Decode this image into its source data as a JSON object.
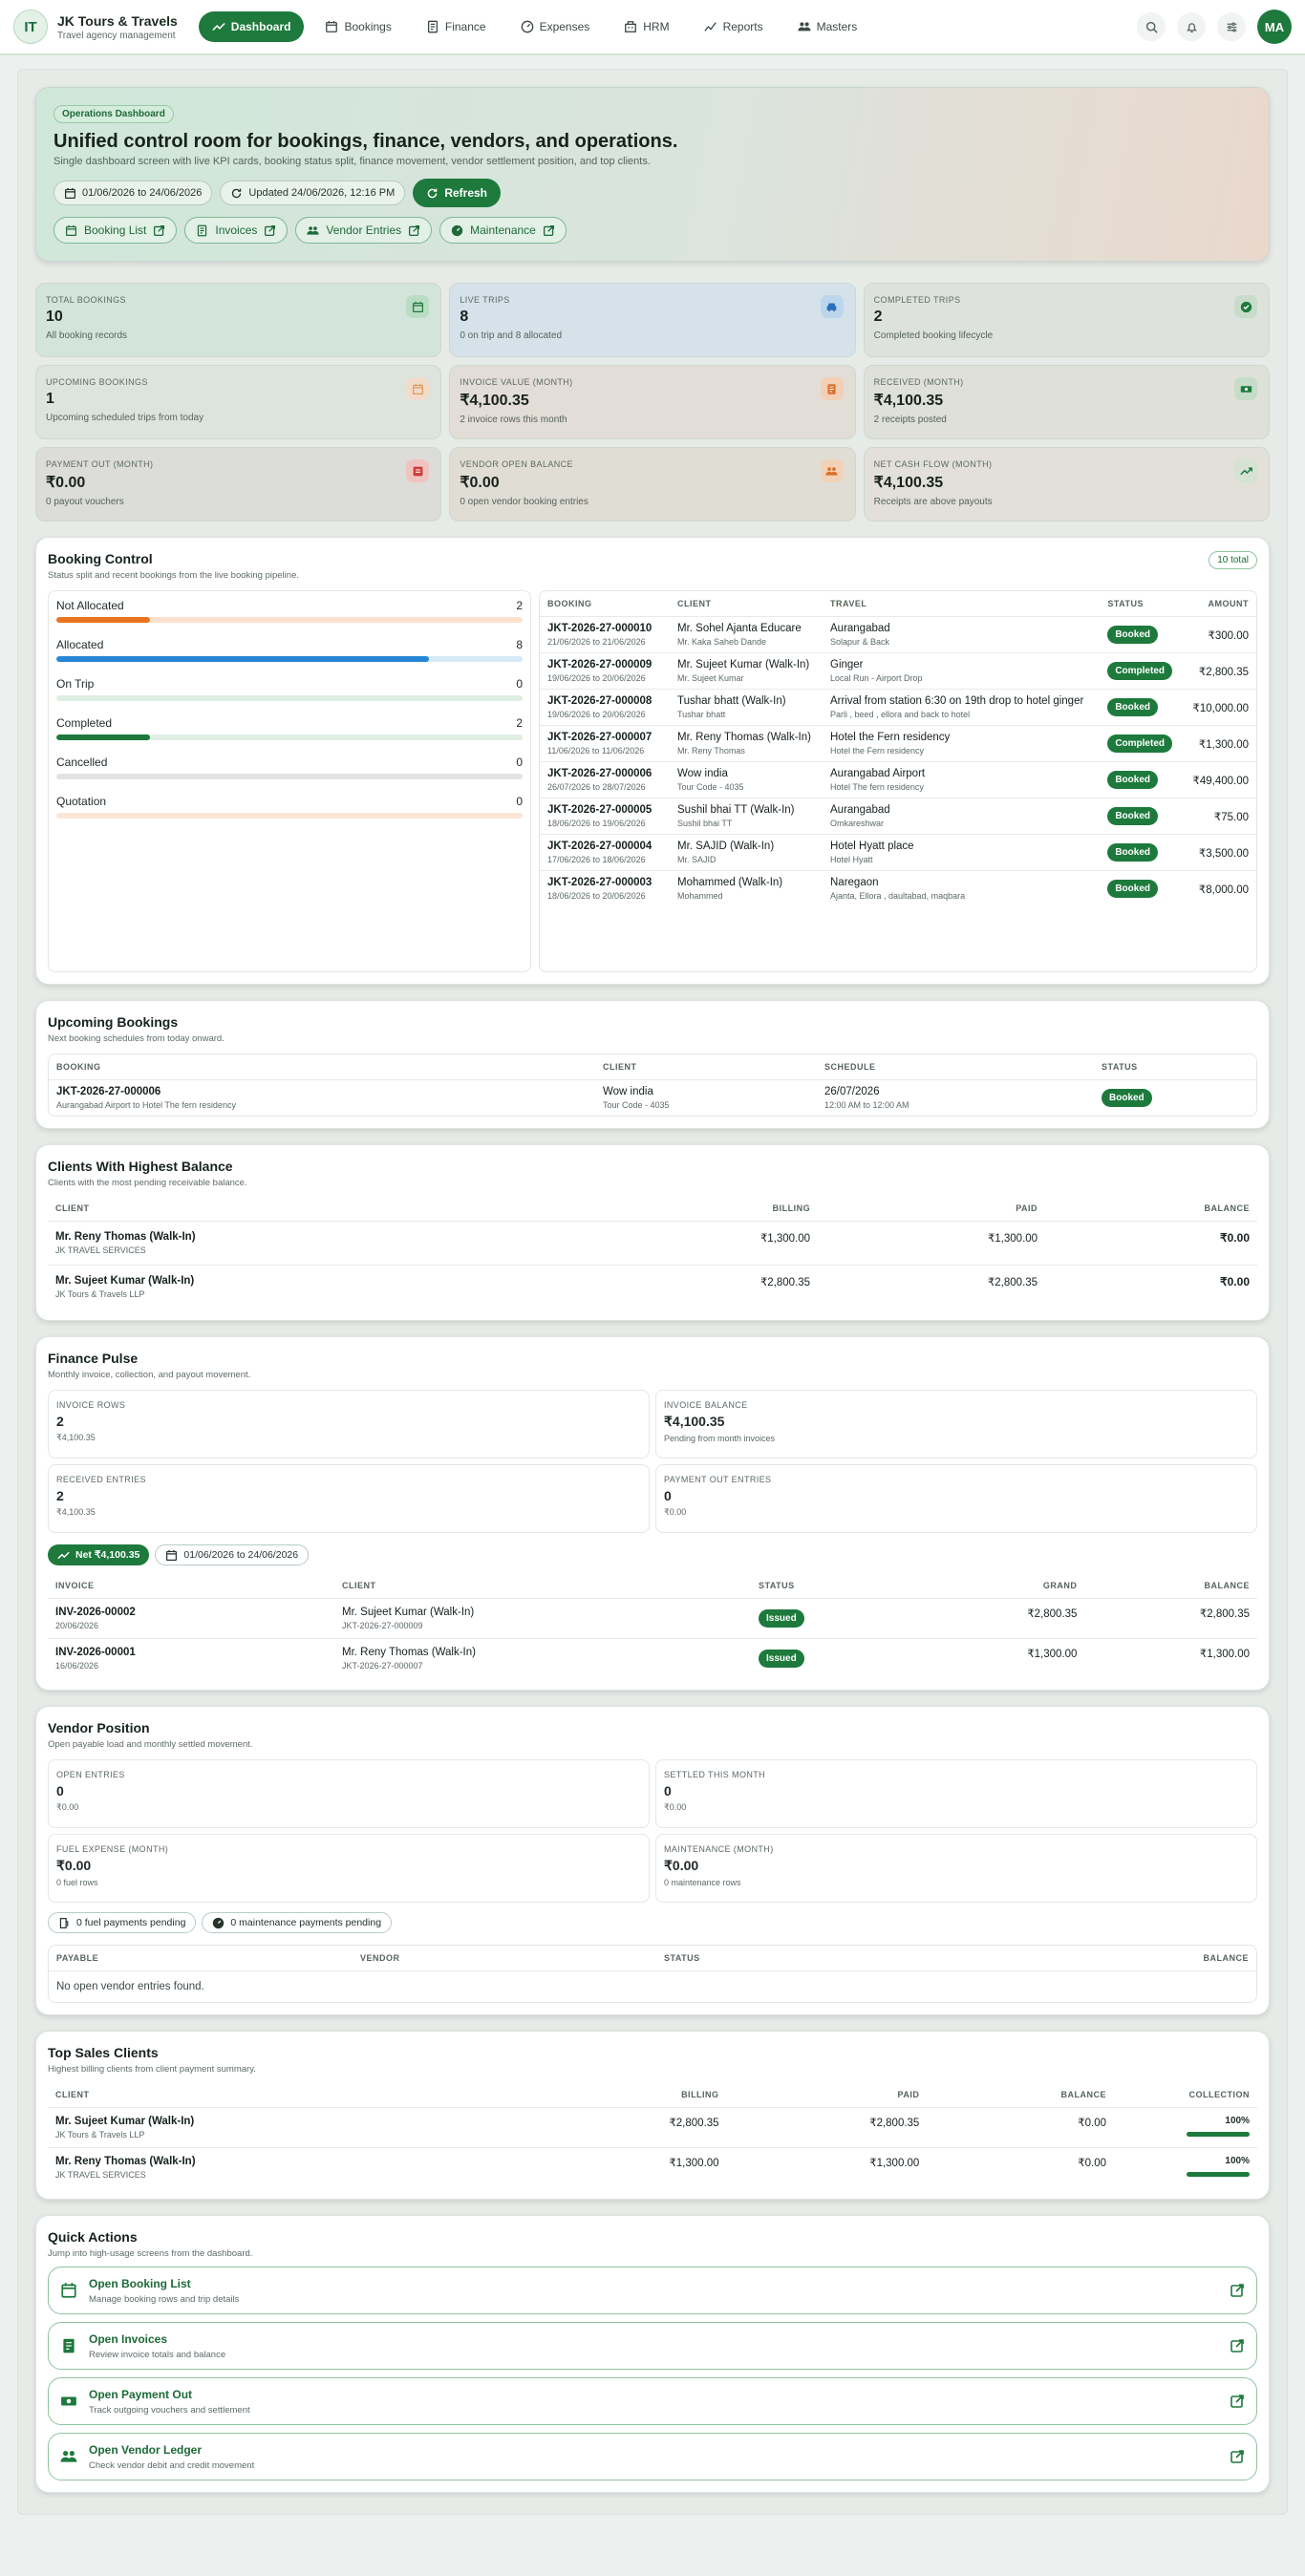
{
  "app": {
    "logo": "IT",
    "name": "JK Tours & Travels",
    "tagline": "Travel agency management",
    "avatar": "MA"
  },
  "nav": [
    "Dashboard",
    "Bookings",
    "Finance",
    "Expenses",
    "HRM",
    "Reports",
    "Masters"
  ],
  "hero": {
    "badge": "Operations Dashboard",
    "title": "Unified control room for bookings, finance, vendors, and operations.",
    "subtitle": "Single dashboard screen with live KPI cards, booking status split, finance movement, vendor settlement position, and top clients.",
    "date_range": "01/06/2026 to 24/06/2026",
    "updated": "Updated 24/06/2026, 12:16 PM",
    "refresh": "Refresh",
    "links": [
      "Booking List",
      "Invoices",
      "Vendor Entries",
      "Maintenance"
    ]
  },
  "kpis": [
    {
      "label": "Total Bookings",
      "value": "10",
      "desc": "All booking records",
      "icon": "calendar-icon",
      "bg": "#d3e5da",
      "ic": "#1d7a3c",
      "icbg": "#b9dcc5"
    },
    {
      "label": "Live Trips",
      "value": "8",
      "desc": "0 on trip and 8 allocated",
      "icon": "car-icon",
      "bg": "#d5e2ea",
      "ic": "#2a6fb8",
      "icbg": "#bcd6ec"
    },
    {
      "label": "Completed Trips",
      "value": "2",
      "desc": "Completed booking lifecycle",
      "icon": "check-circle-icon",
      "bg": "#dde3dc",
      "ic": "#1d7a3c",
      "icbg": "#c9dccb"
    },
    {
      "label": "Upcoming Bookings",
      "value": "1",
      "desc": "Upcoming scheduled trips from today",
      "icon": "calendar-icon",
      "bg": "#dde4de",
      "ic": "#e09a5a",
      "icbg": "#f1dccb"
    },
    {
      "label": "Invoice Value (Month)",
      "value": "₹4,100.35",
      "desc": "2 invoice rows this month",
      "icon": "invoice-icon",
      "bg": "#e2ddd6",
      "ic": "#d9702b",
      "icbg": "#f2cfb5"
    },
    {
      "label": "Received (Month)",
      "value": "₹4,100.35",
      "desc": "2 receipts posted",
      "icon": "cash-icon",
      "bg": "#dfe0d8",
      "ic": "#1d7a3c",
      "icbg": "#c5dcc8"
    },
    {
      "label": "Payment Out (Month)",
      "value": "₹0.00",
      "desc": "0 payout vouchers",
      "icon": "wallet-icon",
      "bg": "#dcdcd8",
      "ic": "#d23b3b",
      "icbg": "#efc4c0"
    },
    {
      "label": "Vendor Open Balance",
      "value": "₹0.00",
      "desc": "0 open vendor booking entries",
      "icon": "users-icon",
      "bg": "#e0ddd5",
      "ic": "#d9702b",
      "icbg": "#f2d2b7"
    },
    {
      "label": "Net Cash Flow (Month)",
      "value": "₹4,100.35",
      "desc": "Receipts are above payouts",
      "icon": "trend-icon",
      "bg": "#e2e0d9",
      "ic": "#1d7a3c",
      "icbg": "#d5e2d4"
    }
  ],
  "booking_control": {
    "title": "Booking Control",
    "subtitle": "Status split and recent bookings from the live booking pipeline.",
    "total_badge": "10 total",
    "status": [
      {
        "label": "Not Allocated",
        "count": "2",
        "fill": 0.2,
        "color": "#e8741f",
        "track": "#fbe0cd"
      },
      {
        "label": "Allocated",
        "count": "8",
        "fill": 0.8,
        "color": "#2787d6",
        "track": "#d6e8f6"
      },
      {
        "label": "On Trip",
        "count": "0",
        "fill": 0,
        "color": "#1d7a3c",
        "track": "#dfeee3"
      },
      {
        "label": "Completed",
        "count": "2",
        "fill": 0.2,
        "color": "#1d7a3c",
        "track": "#dfeee3"
      },
      {
        "label": "Cancelled",
        "count": "0",
        "fill": 0,
        "color": "#888",
        "track": "#e2e4e3"
      },
      {
        "label": "Quotation",
        "count": "0",
        "fill": 0,
        "color": "#e8741f",
        "track": "#fbe5d6"
      }
    ],
    "headers": [
      "Booking",
      "Client",
      "Travel",
      "Status",
      "Amount"
    ],
    "rows": [
      {
        "id": "JKT-2026-27-000010",
        "dates": "21/06/2026 to 21/06/2026",
        "client": "Mr. Sohel Ajanta Educare",
        "client_sub": "Mr. Kaka Saheb Dande",
        "travel": "Aurangabad",
        "travel_sub": "Solapur & Back",
        "status": "Booked",
        "amount": "₹300.00"
      },
      {
        "id": "JKT-2026-27-000009",
        "dates": "19/06/2026 to 20/06/2026",
        "client": "Mr. Sujeet Kumar (Walk-In)",
        "client_sub": "Mr. Sujeet Kumar",
        "travel": "Ginger",
        "travel_sub": "Local Run - Airport Drop",
        "status": "Completed",
        "amount": "₹2,800.35"
      },
      {
        "id": "JKT-2026-27-000008",
        "dates": "19/06/2026 to 20/06/2026",
        "client": "Tushar bhatt (Walk-In)",
        "client_sub": "Tushar bhatt",
        "travel": "Arrival from station 6:30 on 19th drop to hotel ginger",
        "travel_sub": "Parli , beed , ellora and back to hotel",
        "status": "Booked",
        "amount": "₹10,000.00"
      },
      {
        "id": "JKT-2026-27-000007",
        "dates": "11/06/2026 to 11/06/2026",
        "client": "Mr. Reny Thomas (Walk-In)",
        "client_sub": "Mr. Reny Thomas",
        "travel": "Hotel the Fern residency",
        "travel_sub": "Hotel the Fern residency",
        "status": "Completed",
        "amount": "₹1,300.00"
      },
      {
        "id": "JKT-2026-27-000006",
        "dates": "26/07/2026 to 28/07/2026",
        "client": "Wow india",
        "client_sub": "Tour Code - 4035",
        "travel": "Aurangabad Airport",
        "travel_sub": "Hotel The fern residency",
        "status": "Booked",
        "amount": "₹49,400.00"
      },
      {
        "id": "JKT-2026-27-000005",
        "dates": "18/06/2026 to 19/06/2026",
        "client": "Sushil bhai TT (Walk-In)",
        "client_sub": "Sushil bhai TT",
        "travel": "Aurangabad",
        "travel_sub": "Omkareshwar",
        "status": "Booked",
        "amount": "₹75.00"
      },
      {
        "id": "JKT-2026-27-000004",
        "dates": "17/06/2026 to 18/06/2026",
        "client": "Mr. SAJID (Walk-In)",
        "client_sub": "Mr. SAJID",
        "travel": "Hotel Hyatt place",
        "travel_sub": "Hotel Hyatt",
        "status": "Booked",
        "amount": "₹3,500.00"
      },
      {
        "id": "JKT-2026-27-000003",
        "dates": "18/06/2026 to 20/06/2026",
        "client": "Mohammed (Walk-In)",
        "client_sub": "Mohammed",
        "travel": "Naregaon",
        "travel_sub": "Ajanta, Ellora , daultabad, maqbara",
        "status": "Booked",
        "amount": "₹8,000.00"
      }
    ]
  },
  "upcoming": {
    "title": "Upcoming Bookings",
    "subtitle": "Next booking schedules from today onward.",
    "headers": [
      "Booking",
      "Client",
      "Schedule",
      "Status"
    ],
    "rows": [
      {
        "id": "JKT-2026-27-000006",
        "sub": "Aurangabad Airport to Hotel The fern residency",
        "client": "Wow india",
        "client_sub": "Tour Code - 4035",
        "date": "26/07/2026",
        "time": "12:00 AM to 12:00 AM",
        "status": "Booked"
      }
    ]
  },
  "clients_balance": {
    "title": "Clients With Highest Balance",
    "subtitle": "Clients with the most pending receivable balance.",
    "headers": [
      "Client",
      "Billing",
      "Paid",
      "Balance"
    ],
    "rows": [
      {
        "name": "Mr. Reny Thomas (Walk-In)",
        "sub": "JK TRAVEL SERVICES",
        "billing": "₹1,300.00",
        "paid": "₹1,300.00",
        "balance": "₹0.00"
      },
      {
        "name": "Mr. Sujeet Kumar (Walk-In)",
        "sub": "JK Tours & Travels LLP",
        "billing": "₹2,800.35",
        "paid": "₹2,800.35",
        "balance": "₹0.00"
      }
    ]
  },
  "finance": {
    "title": "Finance Pulse",
    "subtitle": "Monthly invoice, collection, and payout movement.",
    "minis": [
      {
        "label": "Invoice Rows",
        "value": "2",
        "desc": "₹4,100.35"
      },
      {
        "label": "Invoice Balance",
        "value": "₹4,100.35",
        "desc": "Pending from month invoices"
      },
      {
        "label": "Received Entries",
        "value": "2",
        "desc": "₹4,100.35"
      },
      {
        "label": "Payment Out Entries",
        "value": "0",
        "desc": "₹0.00"
      }
    ],
    "net": "Net ₹4,100.35",
    "range": "01/06/2026 to 24/06/2026",
    "headers": [
      "Invoice",
      "Client",
      "Status",
      "Grand",
      "Balance"
    ],
    "rows": [
      {
        "id": "INV-2026-00002",
        "date": "20/06/2026",
        "client": "Mr. Sujeet Kumar (Walk-In)",
        "client_sub": "JKT-2026-27-000009",
        "status": "Issued",
        "grand": "₹2,800.35",
        "balance": "₹2,800.35"
      },
      {
        "id": "INV-2026-00001",
        "date": "16/06/2026",
        "client": "Mr. Reny Thomas (Walk-In)",
        "client_sub": "JKT-2026-27-000007",
        "status": "Issued",
        "grand": "₹1,300.00",
        "balance": "₹1,300.00"
      }
    ]
  },
  "vendor": {
    "title": "Vendor Position",
    "subtitle": "Open payable load and monthly settled movement.",
    "minis": [
      {
        "label": "Open Entries",
        "value": "0",
        "desc": "₹0.00"
      },
      {
        "label": "Settled This Month",
        "value": "0",
        "desc": "₹0.00"
      },
      {
        "label": "Fuel Expense (Month)",
        "value": "₹0.00",
        "desc": "0 fuel rows"
      },
      {
        "label": "Maintenance (Month)",
        "value": "₹0.00",
        "desc": "0 maintenance rows"
      }
    ],
    "chips": [
      "0 fuel payments pending",
      "0 maintenance payments pending"
    ],
    "headers": [
      "Payable",
      "Vendor",
      "Status",
      "Balance"
    ],
    "empty": "No open vendor entries found."
  },
  "top_clients": {
    "title": "Top Sales Clients",
    "subtitle": "Highest billing clients from client payment summary.",
    "headers": [
      "Client",
      "Billing",
      "Paid",
      "Balance",
      "Collection"
    ],
    "rows": [
      {
        "name": "Mr. Sujeet Kumar (Walk-In)",
        "sub": "JK Tours & Travels LLP",
        "billing": "₹2,800.35",
        "paid": "₹2,800.35",
        "balance": "₹0.00",
        "collection": "100%",
        "pct": 1
      },
      {
        "name": "Mr. Reny Thomas (Walk-In)",
        "sub": "JK TRAVEL SERVICES",
        "billing": "₹1,300.00",
        "paid": "₹1,300.00",
        "balance": "₹0.00",
        "collection": "100%",
        "pct": 1
      }
    ]
  },
  "quick": {
    "title": "Quick Actions",
    "subtitle": "Jump into high-usage screens from the dashboard.",
    "items": [
      {
        "title": "Open Booking List",
        "sub": "Manage booking rows and trip details",
        "icon": "calendar-icon"
      },
      {
        "title": "Open Invoices",
        "sub": "Review invoice totals and balance",
        "icon": "invoice-icon"
      },
      {
        "title": "Open Payment Out",
        "sub": "Track outgoing vouchers and settlement",
        "icon": "cash-icon"
      },
      {
        "title": "Open Vendor Ledger",
        "sub": "Check vendor debit and credit movement",
        "icon": "users-icon"
      }
    ]
  }
}
